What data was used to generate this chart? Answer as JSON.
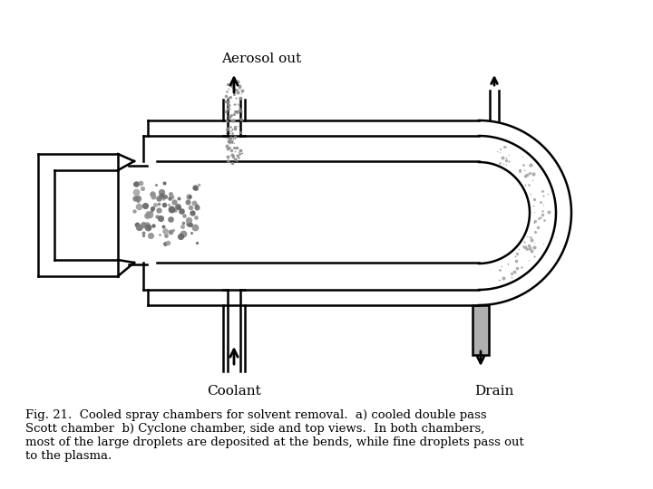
{
  "fig_caption": "Fig. 21.  Cooled spray chambers for solvent removal.  a) cooled double pass\nScott chamber  b) Cyclone chamber, side and top views.  In both chambers,\nmost of the large droplets are deposited at the bends, while fine droplets pass out\nto the plasma.",
  "aerosol_label": "Aerosol out",
  "coolant_label": "Coolant",
  "drain_label": "Drain",
  "bg_color": "#ffffff",
  "line_color": "#000000",
  "gray_color": "#b0b0b0"
}
